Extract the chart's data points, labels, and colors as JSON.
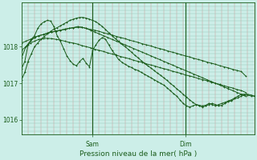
{
  "bg_color": "#cceee8",
  "grid_color_v": "#cc9999",
  "grid_color_h": "#99ccbb",
  "line_color": "#1a5c1a",
  "xlabel": "Pression niveau de la mer( hPa )",
  "ylim": [
    1015.6,
    1019.2
  ],
  "yticks": [
    1016,
    1017,
    1018
  ],
  "xlim": [
    0,
    108
  ],
  "sam_x": 33,
  "dim_x": 76,
  "figsize": [
    3.2,
    2.0
  ],
  "dpi": 100,
  "series1_x": [
    0,
    2,
    4,
    6,
    8,
    10,
    12,
    14,
    16,
    18,
    20,
    22,
    24,
    26,
    28,
    30,
    32,
    34,
    36,
    38,
    40,
    42,
    44,
    46,
    48,
    50,
    52,
    54,
    56,
    58,
    60,
    62,
    64,
    66,
    68,
    70,
    72,
    74,
    76,
    78,
    80,
    82,
    84,
    86,
    88,
    90,
    92,
    94,
    96,
    98,
    100,
    102,
    104
  ],
  "series1_y": [
    1017.9,
    1018.0,
    1018.1,
    1018.15,
    1018.2,
    1018.22,
    1018.23,
    1018.22,
    1018.2,
    1018.18,
    1018.15,
    1018.12,
    1018.1,
    1018.07,
    1018.03,
    1018.0,
    1017.97,
    1017.93,
    1017.9,
    1017.87,
    1017.83,
    1017.8,
    1017.77,
    1017.73,
    1017.7,
    1017.67,
    1017.63,
    1017.6,
    1017.57,
    1017.53,
    1017.5,
    1017.47,
    1017.43,
    1017.4,
    1017.37,
    1017.33,
    1017.3,
    1017.27,
    1017.23,
    1017.2,
    1017.17,
    1017.13,
    1017.1,
    1017.07,
    1017.03,
    1017.0,
    1016.97,
    1016.93,
    1016.9,
    1016.87,
    1016.83,
    1016.8,
    1016.75
  ],
  "series2_x": [
    0,
    2,
    4,
    6,
    8,
    10,
    12,
    14,
    16,
    18,
    20,
    22,
    24,
    26,
    28,
    30,
    32,
    34,
    36,
    38,
    40,
    42,
    44,
    46,
    48,
    50,
    52,
    54,
    56,
    58,
    60,
    62,
    64,
    66,
    68,
    70,
    72,
    74,
    76,
    78,
    80,
    82,
    84,
    86,
    88,
    90,
    92,
    94,
    96,
    98,
    100,
    102,
    104
  ],
  "series2_y": [
    1018.1,
    1018.15,
    1018.2,
    1018.25,
    1018.3,
    1018.33,
    1018.37,
    1018.4,
    1018.42,
    1018.45,
    1018.47,
    1018.5,
    1018.52,
    1018.53,
    1018.53,
    1018.5,
    1018.47,
    1018.45,
    1018.42,
    1018.38,
    1018.35,
    1018.32,
    1018.28,
    1018.25,
    1018.22,
    1018.18,
    1018.15,
    1018.12,
    1018.08,
    1018.05,
    1018.02,
    1017.98,
    1017.95,
    1017.92,
    1017.88,
    1017.85,
    1017.82,
    1017.78,
    1017.75,
    1017.72,
    1017.68,
    1017.65,
    1017.62,
    1017.58,
    1017.55,
    1017.52,
    1017.48,
    1017.45,
    1017.42,
    1017.38,
    1017.35,
    1017.32,
    1017.2
  ],
  "series3_x": [
    0,
    1.5,
    3,
    4.5,
    6,
    7.5,
    9,
    10.5,
    12,
    13.5,
    15,
    16.5,
    18,
    19.5,
    21,
    22.5,
    24,
    25.5,
    27,
    28.5,
    30,
    31.5,
    33,
    34.5,
    36,
    37.5,
    39,
    40.5,
    42,
    43.5,
    45,
    46.5,
    48,
    49.5,
    51,
    52.5,
    54,
    55.5,
    57,
    58.5,
    60,
    61.5,
    63,
    64.5,
    66,
    67.5,
    69,
    70.5,
    72,
    73.5,
    75,
    76.5,
    78,
    79.5,
    81,
    82.5,
    84,
    85.5,
    87,
    88.5,
    90,
    91.5,
    93,
    94.5,
    96,
    97.5,
    99,
    100.5,
    102,
    103.5,
    105,
    106.5,
    108
  ],
  "series3_y": [
    1017.4,
    1017.6,
    1018.05,
    1018.2,
    1018.3,
    1018.5,
    1018.62,
    1018.68,
    1018.72,
    1018.7,
    1018.55,
    1018.3,
    1018.15,
    1017.95,
    1017.75,
    1017.62,
    1017.52,
    1017.48,
    1017.6,
    1017.68,
    1017.55,
    1017.45,
    1017.9,
    1018.05,
    1018.18,
    1018.25,
    1018.2,
    1018.05,
    1017.9,
    1017.78,
    1017.65,
    1017.58,
    1017.52,
    1017.47,
    1017.43,
    1017.38,
    1017.35,
    1017.3,
    1017.25,
    1017.2,
    1017.15,
    1017.1,
    1017.05,
    1017.0,
    1016.95,
    1016.88,
    1016.8,
    1016.72,
    1016.65,
    1016.55,
    1016.45,
    1016.38,
    1016.35,
    1016.38,
    1016.42,
    1016.4,
    1016.38,
    1016.4,
    1016.45,
    1016.42,
    1016.38,
    1016.42,
    1016.45,
    1016.48,
    1016.52,
    1016.55,
    1016.6,
    1016.65,
    1016.7,
    1016.7,
    1016.68,
    1016.65,
    1016.65
  ],
  "series4_x": [
    0,
    1.5,
    3,
    4.5,
    6,
    7.5,
    9,
    10.5,
    12,
    13.5,
    15,
    16.5,
    18,
    19.5,
    21,
    22.5,
    24,
    25.5,
    27,
    28.5,
    30,
    31.5,
    33,
    34.5,
    36,
    37.5,
    39,
    40.5,
    42,
    43.5,
    45,
    46.5,
    48,
    49.5,
    51,
    52.5,
    54,
    55.5,
    57,
    58.5,
    60,
    61.5,
    63,
    64.5,
    66,
    67.5,
    69,
    70.5,
    72,
    73.5,
    75,
    76.5,
    78,
    79.5,
    81,
    82.5,
    84,
    85.5,
    87,
    88.5,
    90,
    91.5,
    93,
    94.5,
    96,
    97.5,
    99,
    100.5,
    102,
    103.5,
    105,
    106.5,
    108
  ],
  "series4_y": [
    1017.1,
    1017.3,
    1017.6,
    1017.8,
    1018.0,
    1018.1,
    1018.2,
    1018.28,
    1018.35,
    1018.42,
    1018.48,
    1018.52,
    1018.57,
    1018.62,
    1018.67,
    1018.72,
    1018.75,
    1018.78,
    1018.8,
    1018.8,
    1018.78,
    1018.75,
    1018.72,
    1018.68,
    1018.62,
    1018.55,
    1018.47,
    1018.38,
    1018.3,
    1018.22,
    1018.15,
    1018.07,
    1018.0,
    1017.93,
    1017.85,
    1017.77,
    1017.7,
    1017.62,
    1017.55,
    1017.48,
    1017.42,
    1017.35,
    1017.28,
    1017.22,
    1017.15,
    1017.08,
    1017.0,
    1016.93,
    1016.85,
    1016.78,
    1016.7,
    1016.62,
    1016.55,
    1016.48,
    1016.42,
    1016.38,
    1016.35,
    1016.38,
    1016.42,
    1016.45,
    1016.42,
    1016.38,
    1016.4,
    1016.45,
    1016.5,
    1016.52,
    1016.58,
    1016.6,
    1016.65,
    1016.68,
    1016.7,
    1016.68,
    1016.65
  ],
  "series5_x": [
    0,
    2,
    4,
    6,
    8,
    10,
    12,
    14,
    16,
    18,
    20,
    22,
    24,
    26,
    28,
    30,
    32,
    34,
    36,
    38,
    40,
    42,
    44,
    46,
    48,
    50,
    52,
    54,
    56,
    58,
    60,
    62,
    64,
    66,
    68,
    70,
    72,
    74,
    76,
    78,
    80,
    82,
    84,
    86,
    88,
    90,
    92,
    94,
    96,
    98,
    100,
    102,
    104
  ],
  "series5_y": [
    1017.7,
    1018.0,
    1018.15,
    1018.25,
    1018.3,
    1018.33,
    1018.37,
    1018.4,
    1018.43,
    1018.45,
    1018.48,
    1018.5,
    1018.52,
    1018.55,
    1018.53,
    1018.5,
    1018.45,
    1018.4,
    1018.35,
    1018.3,
    1018.25,
    1018.2,
    1018.15,
    1018.1,
    1018.05,
    1018.0,
    1017.95,
    1017.9,
    1017.85,
    1017.8,
    1017.75,
    1017.7,
    1017.65,
    1017.6,
    1017.55,
    1017.5,
    1017.45,
    1017.4,
    1017.35,
    1017.3,
    1017.25,
    1017.2,
    1017.15,
    1017.1,
    1017.05,
    1017.0,
    1016.95,
    1016.9,
    1016.85,
    1016.8,
    1016.75,
    1016.7,
    1016.65
  ]
}
